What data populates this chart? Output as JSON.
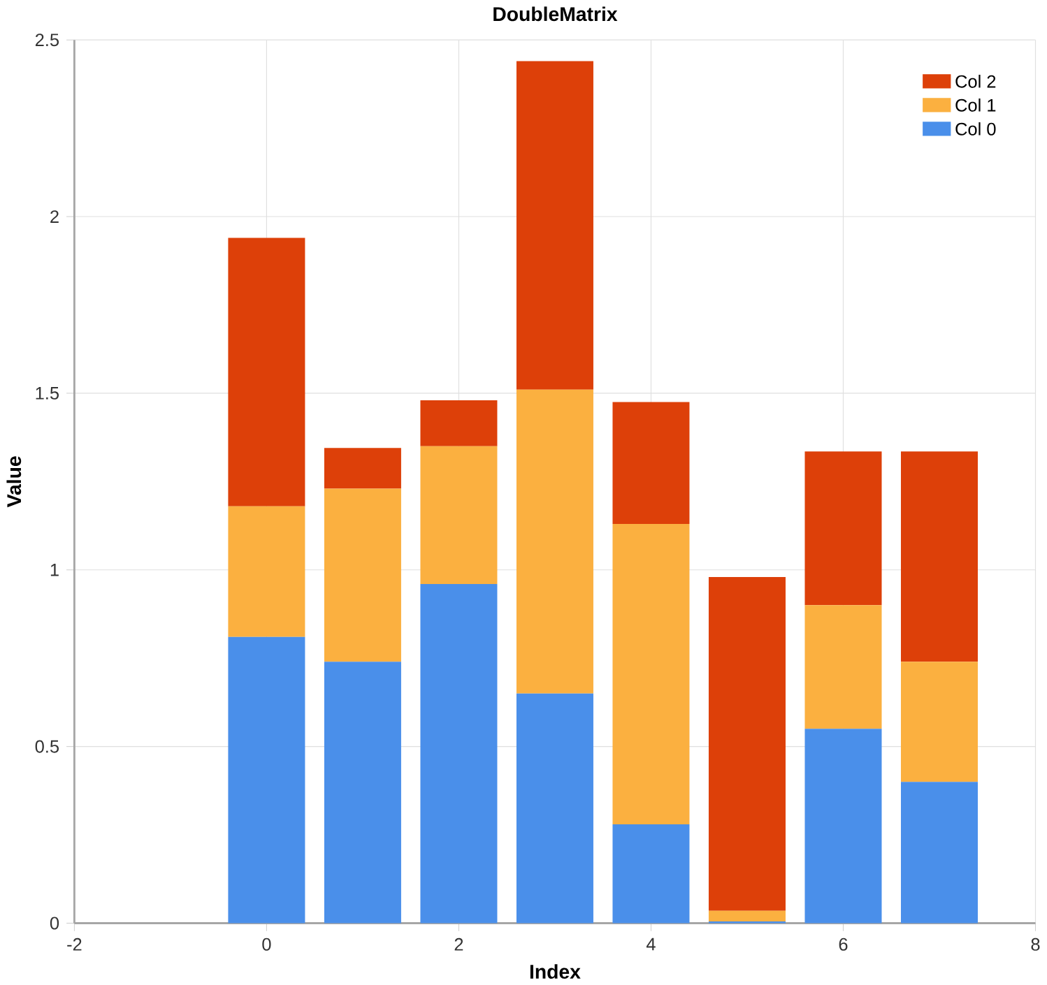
{
  "chart_data": {
    "type": "bar",
    "title": "DoubleMatrix",
    "xlabel": "Index",
    "ylabel": "Value",
    "x": [
      0,
      1,
      2,
      3,
      4,
      5,
      6,
      7
    ],
    "series": [
      {
        "name": "Col 0",
        "color": "#4a8fea",
        "values": [
          0.81,
          0.74,
          0.96,
          0.65,
          0.28,
          0.005,
          0.55,
          0.4
        ]
      },
      {
        "name": "Col 1",
        "color": "#fbb040",
        "values": [
          0.37,
          0.49,
          0.39,
          0.86,
          0.85,
          0.03,
          0.35,
          0.34
        ]
      },
      {
        "name": "Col 2",
        "color": "#dd4009",
        "values": [
          0.76,
          0.115,
          0.13,
          0.93,
          0.345,
          0.945,
          0.435,
          0.595
        ]
      }
    ],
    "stacked": true,
    "xlim": [
      -2,
      8
    ],
    "xticks": [
      -2,
      0,
      2,
      4,
      6,
      8
    ],
    "ylim": [
      0,
      2.5
    ],
    "yticks": [
      0,
      0.5,
      1,
      1.5,
      2,
      2.5
    ],
    "grid": true,
    "legend": "top right"
  }
}
